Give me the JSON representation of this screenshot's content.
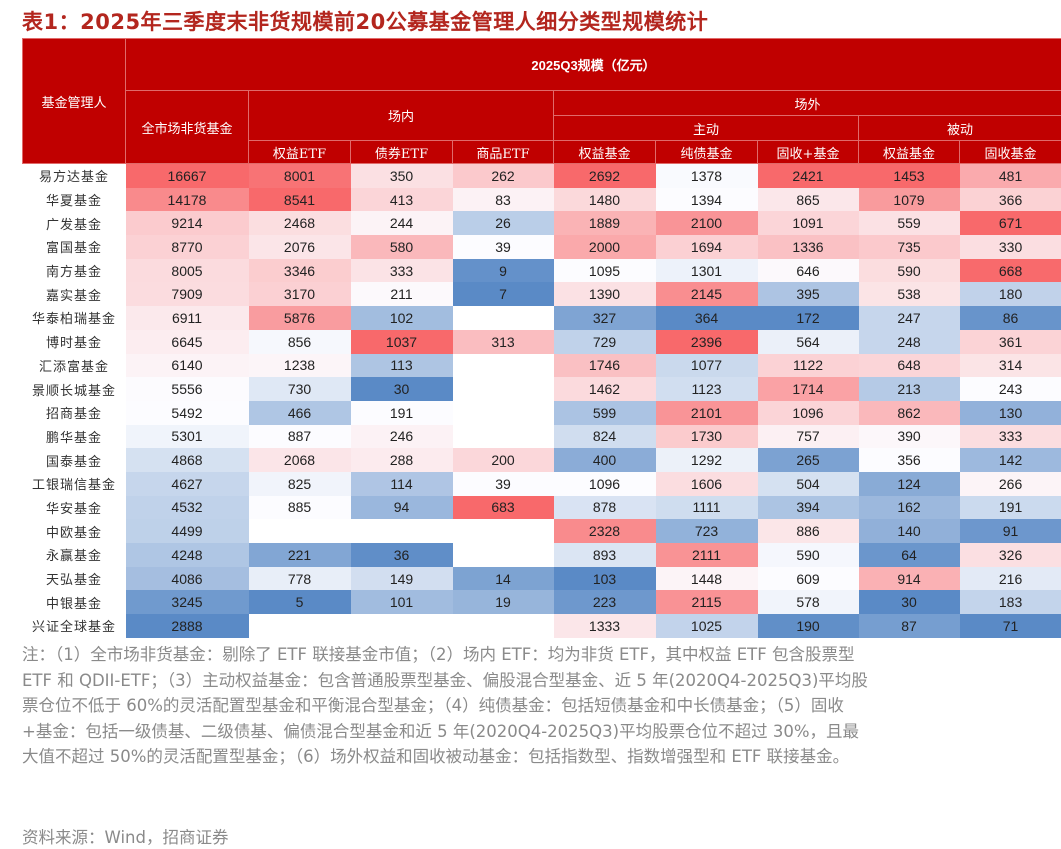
{
  "title": "表1：2025年三季度末非货规模前20公募基金管理人细分类型规模统计",
  "header": {
    "manager": "基金管理人",
    "scale": "2025Q3规模（亿元）",
    "all_market": "全市场非货基金",
    "onexchange": "场内",
    "offexchange": "场外",
    "active": "主动",
    "passive": "被动",
    "cols": [
      "权益ETF",
      "债券ETF",
      "商品ETF",
      "权益基金",
      "纯债基金",
      "固收+基金",
      "权益基金",
      "固收基金"
    ]
  },
  "chart_data": {
    "type": "heatmap",
    "title": "表1：2025年三季度末非货规模前20公募基金管理人细分类型规模统计",
    "unit": "亿元",
    "columns": [
      "全市场非货基金",
      "场内-权益ETF",
      "场内-债券ETF",
      "场内-商品ETF",
      "场外主动-权益基金",
      "场外主动-纯债基金",
      "场外主动-固收+基金",
      "场外被动-权益基金",
      "场外被动-固收基金"
    ],
    "rows": [
      {
        "name": "易方达基金",
        "values": [
          16667,
          8001,
          350,
          262,
          2692,
          1378,
          2421,
          1453,
          481
        ]
      },
      {
        "name": "华夏基金",
        "values": [
          14178,
          8541,
          413,
          83,
          1480,
          1394,
          865,
          1079,
          366
        ]
      },
      {
        "name": "广发基金",
        "values": [
          9214,
          2468,
          244,
          26,
          1889,
          2100,
          1091,
          559,
          671
        ]
      },
      {
        "name": "富国基金",
        "values": [
          8770,
          2076,
          580,
          39,
          2000,
          1694,
          1336,
          735,
          330
        ]
      },
      {
        "name": "南方基金",
        "values": [
          8005,
          3346,
          333,
          9,
          1095,
          1301,
          646,
          590,
          668
        ]
      },
      {
        "name": "嘉实基金",
        "values": [
          7909,
          3170,
          211,
          7,
          1390,
          2145,
          395,
          538,
          180
        ]
      },
      {
        "name": "华泰柏瑞基金",
        "values": [
          6911,
          5876,
          102,
          null,
          327,
          364,
          172,
          247,
          86
        ]
      },
      {
        "name": "博时基金",
        "values": [
          6645,
          856,
          1037,
          313,
          729,
          2396,
          564,
          248,
          361
        ]
      },
      {
        "name": "汇添富基金",
        "values": [
          6140,
          1238,
          113,
          null,
          1746,
          1077,
          1122,
          648,
          314
        ]
      },
      {
        "name": "景顺长城基金",
        "values": [
          5556,
          730,
          30,
          null,
          1462,
          1123,
          1714,
          213,
          243
        ]
      },
      {
        "name": "招商基金",
        "values": [
          5492,
          466,
          191,
          null,
          599,
          2101,
          1096,
          862,
          130
        ]
      },
      {
        "name": "鹏华基金",
        "values": [
          5301,
          887,
          246,
          null,
          824,
          1730,
          757,
          390,
          333
        ]
      },
      {
        "name": "国泰基金",
        "values": [
          4868,
          2068,
          288,
          200,
          400,
          1292,
          265,
          356,
          142
        ]
      },
      {
        "name": "工银瑞信基金",
        "values": [
          4627,
          825,
          114,
          39,
          1096,
          1606,
          504,
          124,
          266
        ]
      },
      {
        "name": "华安基金",
        "values": [
          4532,
          885,
          94,
          683,
          878,
          1111,
          394,
          162,
          191
        ]
      },
      {
        "name": "中欧基金",
        "values": [
          4499,
          null,
          null,
          null,
          2328,
          723,
          886,
          140,
          91
        ]
      },
      {
        "name": "永赢基金",
        "values": [
          4248,
          221,
          36,
          null,
          893,
          2111,
          590,
          64,
          326
        ]
      },
      {
        "name": "天弘基金",
        "values": [
          4086,
          778,
          149,
          14,
          103,
          1448,
          609,
          914,
          216
        ]
      },
      {
        "name": "中银基金",
        "values": [
          3245,
          5,
          101,
          19,
          223,
          2115,
          578,
          30,
          183
        ]
      },
      {
        "name": "兴证全球基金",
        "values": [
          2888,
          null,
          null,
          null,
          1333,
          1025,
          190,
          87,
          71
        ]
      }
    ],
    "colors": {
      "high": "#f8696b",
      "mid": "#fcfcff",
      "low": "#5a8ac6",
      "header": "#c00000"
    }
  },
  "notes": "注：（1）全市场非货基金：剔除了 ETF 联接基金市值；（2）场内 ETF：均为非货 ETF，其中权益 ETF 包含股票型 ETF 和 QDII-ETF；（3）主动权益基金：包含普通股票型基金、偏股混合型基金、近 5 年(2020Q4-2025Q3)平均股票仓位不低于 60%的灵活配置型基金和平衡混合型基金；（4）纯债基金：包括短债基金和中长债基金；（5）固收+基金：包括一级债基、二级债基、偏债混合型基金和近 5 年(2020Q4-2025Q3)平均股票仓位不超过 30%，且最大值不超过 50%的灵活配置型基金；（6）场外权益和固收被动基金：包括指数型、指数增强型和 ETF 联接基金。",
  "source": "资料来源：Wind，招商证券"
}
